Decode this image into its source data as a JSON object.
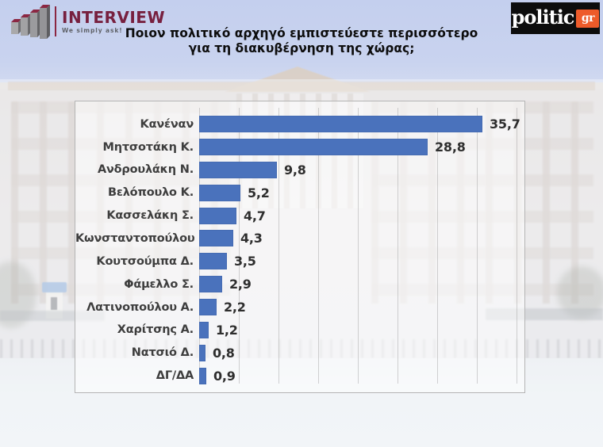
{
  "header": {
    "interview_logo": {
      "name": "INTERVIEW",
      "tagline": "We simply ask!",
      "brand_color": "#77203f"
    },
    "politic_logo": {
      "text": "politic",
      "suffix": "gr",
      "box_color": "#0d0d0d",
      "suffix_color": "#ee5b2a"
    },
    "title_line1": "Ποιον πολιτικό αρχηγό εμπιστεύεστε περισσότερο",
    "title_line2": "για τη διακυβέρνηση της χώρας;"
  },
  "chart_data": {
    "type": "bar",
    "orientation": "horizontal",
    "title": "Ποιον πολιτικό αρχηγό εμπιστεύεστε περισσότερο για τη διακυβέρνηση της χώρας;",
    "categories": [
      "Κανέναν",
      "Μητσοτάκη Κ.",
      "Ανδρουλάκη Ν.",
      "Βελόπουλο Κ.",
      "Κασσελάκη Σ.",
      "Κωνσταντοπούλου Ζ.",
      "Κουτσούμπα Δ.",
      "Φάμελλο Σ.",
      "Λατινοπούλου Α.",
      "Χαρίτσης Α.",
      "Νατσιό Δ.",
      "ΔΓ/ΔΑ"
    ],
    "values": [
      35.7,
      28.8,
      9.8,
      5.2,
      4.7,
      4.3,
      3.5,
      2.9,
      2.2,
      1.2,
      0.8,
      0.9
    ],
    "value_labels": [
      "35,7",
      "28,8",
      "9,8",
      "5,2",
      "4,7",
      "4,3",
      "3,5",
      "2,9",
      "2,2",
      "1,2",
      "0,8",
      "0,9"
    ],
    "bar_color": "#4a72bc",
    "xlim": [
      0,
      40
    ],
    "gridline_step": 5,
    "grid": true,
    "legend": false,
    "data_labels": true
  }
}
